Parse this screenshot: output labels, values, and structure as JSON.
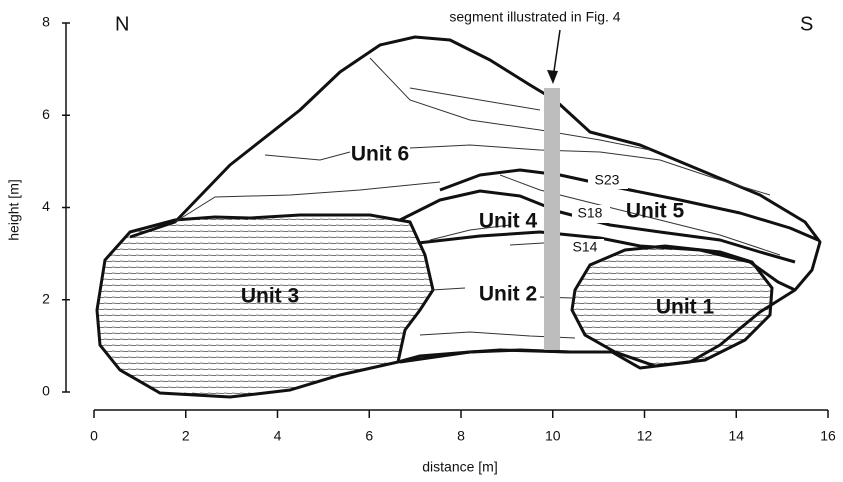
{
  "compass": {
    "north": "N",
    "south": "S"
  },
  "annotation": "segment illustrated in Fig. 4",
  "units": [
    "Unit 1",
    "Unit 2",
    "Unit 3",
    "Unit 4",
    "Unit 5",
    "Unit 6"
  ],
  "strata": [
    "S23",
    "S18",
    "S14"
  ],
  "axes": {
    "xlabel": "distance [m]",
    "ylabel": "height [m]",
    "xlim": [
      0,
      16
    ],
    "ylim": [
      0,
      8
    ],
    "xticks": [
      0,
      2,
      4,
      6,
      8,
      10,
      12,
      14,
      16
    ],
    "yticks": [
      0,
      2,
      4,
      6,
      8
    ]
  }
}
